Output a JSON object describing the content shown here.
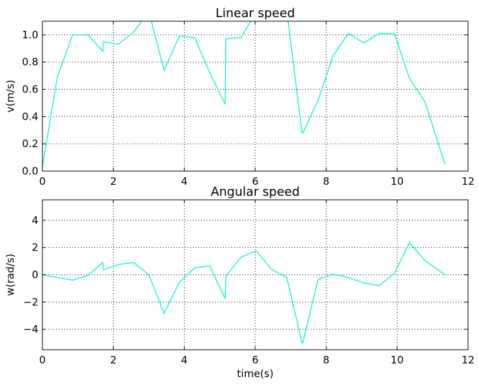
{
  "chart_data": [
    {
      "type": "line",
      "title": "Linear speed",
      "xlabel": "",
      "ylabel": "v(m/s)",
      "xlim": [
        0,
        12
      ],
      "ylim": [
        0,
        1.1
      ],
      "xticks": [
        0,
        2,
        4,
        6,
        8,
        10,
        12
      ],
      "xtick_labels": [
        "0",
        "2",
        "4",
        "6",
        "8",
        "10",
        "12"
      ],
      "yticks": [
        0.0,
        0.2,
        0.4,
        0.6,
        0.8,
        1.0
      ],
      "ytick_labels": [
        "0.0",
        "0.2",
        "0.4",
        "0.6",
        "0.8",
        "1.0"
      ],
      "grid": true,
      "color": "#00f5d4",
      "series": [
        {
          "x": [
            0.0,
            0.42,
            0.85,
            1.28,
            1.7,
            1.72,
            2.14,
            2.57,
            3.0,
            3.43,
            3.86,
            4.29,
            4.72,
            5.15,
            5.17,
            5.6,
            6.03,
            6.46,
            6.89,
            7.32,
            7.34,
            7.77,
            8.2,
            8.63,
            9.06,
            9.49,
            9.92,
            10.35,
            10.78,
            11.35
          ],
          "y": [
            0.03,
            0.69,
            1.0,
            1.0,
            0.88,
            0.95,
            0.93,
            1.02,
            1.17,
            0.74,
            0.99,
            0.98,
            0.72,
            0.49,
            0.97,
            0.98,
            1.17,
            1.17,
            1.17,
            0.28,
            0.28,
            0.52,
            0.85,
            1.01,
            0.94,
            1.01,
            1.01,
            0.68,
            0.51,
            0.05
          ]
        }
      ]
    },
    {
      "type": "line",
      "title": "Angular speed",
      "xlabel": "time(s)",
      "ylabel": "w(rad/s)",
      "xlim": [
        0,
        12
      ],
      "ylim": [
        -5.5,
        5.5
      ],
      "xticks": [
        0,
        2,
        4,
        6,
        8,
        10,
        12
      ],
      "xtick_labels": [
        "0",
        "2",
        "4",
        "6",
        "8",
        "10",
        "12"
      ],
      "yticks": [
        -4,
        -2,
        0,
        2,
        4
      ],
      "ytick_labels": [
        "−4",
        "−2",
        "0",
        "2",
        "4"
      ],
      "grid": true,
      "color": "#00f5d4",
      "series": [
        {
          "x": [
            0.0,
            0.42,
            0.85,
            1.28,
            1.7,
            1.72,
            2.14,
            2.57,
            3.0,
            3.43,
            3.86,
            4.29,
            4.72,
            5.15,
            5.17,
            5.6,
            6.03,
            6.46,
            6.89,
            7.32,
            7.34,
            7.77,
            8.2,
            8.63,
            9.06,
            9.49,
            9.92,
            10.35,
            10.78,
            11.35
          ],
          "y": [
            0.0,
            -0.2,
            -0.4,
            -0.05,
            0.9,
            0.35,
            0.75,
            0.9,
            0.0,
            -2.85,
            -0.55,
            0.5,
            0.65,
            -1.75,
            -0.1,
            1.3,
            1.75,
            0.4,
            -0.2,
            -5.0,
            -5.0,
            -0.35,
            0.05,
            -0.2,
            -0.6,
            -0.8,
            0.1,
            2.35,
            1.05,
            0.0
          ]
        }
      ]
    }
  ]
}
